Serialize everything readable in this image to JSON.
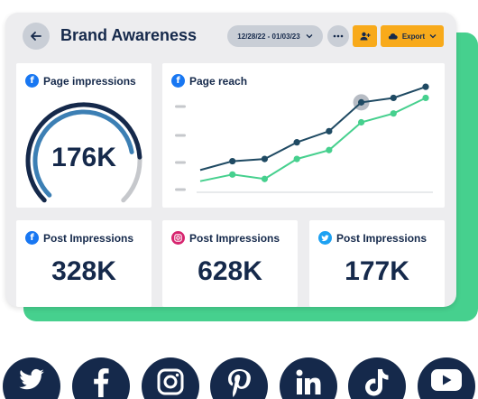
{
  "header": {
    "title": "Brand Awareness",
    "date_range": "12/28/22 - 01/03/23",
    "export_label": "Export"
  },
  "cards": {
    "page_impressions": {
      "title": "Page impressions",
      "value": "176K",
      "network": "facebook",
      "gauge_level": 0.82
    },
    "page_reach": {
      "title": "Page reach",
      "network": "facebook"
    },
    "post_impressions_facebook": {
      "title": "Post Impressions",
      "value": "328K",
      "network": "facebook"
    },
    "post_impressions_instagram": {
      "title": "Post Impressions",
      "value": "628K",
      "network": "instagram"
    },
    "post_impressions_twitter": {
      "title": "Post Impressions",
      "value": "177K",
      "network": "twitter"
    }
  },
  "chart_data": {
    "type": "line",
    "title": "Page reach",
    "x": [
      1,
      2,
      3,
      4,
      5,
      6,
      7
    ],
    "ylim": [
      0,
      100
    ],
    "series": [
      {
        "values": [
          20,
          28,
          30,
          45,
          55,
          81,
          85,
          95
        ],
        "x": [
          0,
          1,
          2,
          3,
          4,
          5,
          6,
          7
        ],
        "color": "#1f4a63"
      },
      {
        "values": [
          10,
          16,
          12,
          30,
          38,
          63,
          71,
          85
        ],
        "x": [
          0,
          1,
          2,
          3,
          4,
          5,
          6,
          7
        ],
        "color": "#46d08e"
      }
    ],
    "highlight_index": 5,
    "grid": false
  },
  "colors": {
    "navy": "#15294b",
    "accent_green": "#46d08e",
    "accent_orange": "#f8aa1b",
    "facebook": "#1877f2",
    "instagram": "#d6246e",
    "twitter": "#1da1f2"
  },
  "social_icons": [
    "twitter-icon",
    "facebook-icon",
    "instagram-icon",
    "pinterest-icon",
    "linkedin-icon",
    "tiktok-icon",
    "youtube-icon"
  ]
}
